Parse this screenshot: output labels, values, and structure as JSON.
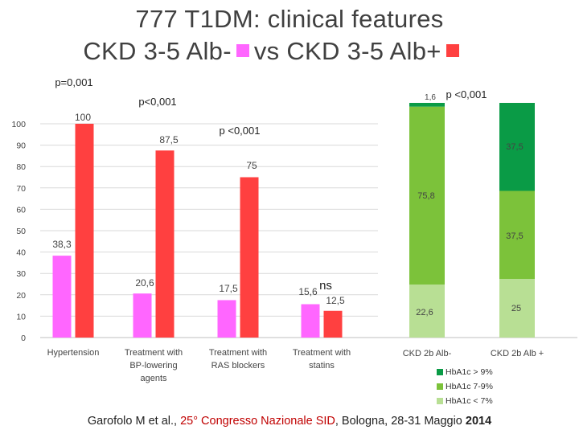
{
  "header": {
    "title_line1": "777 T1DM: clinical features",
    "title_line2_left": "CKD 3-5 Alb-",
    "title_line2_right": "vs CKD 3-5 Alb+",
    "legend_colors": {
      "alb_minus": "#ff66ff",
      "alb_plus": "#ff4040"
    }
  },
  "chart_data": [
    {
      "type": "bar",
      "categories": [
        "Hypertension",
        "Treatment with BP-lowering agents",
        "Treatment with RAS blockers",
        "Treatment with statins"
      ],
      "category_lines": [
        [
          "Hypertension"
        ],
        [
          "Treatment with",
          "BP-lowering",
          "agents"
        ],
        [
          "Treatment with",
          "RAS blockers"
        ],
        [
          "Treatment with",
          "statins"
        ]
      ],
      "series": [
        {
          "name": "CKD 3-5 Alb-",
          "color": "#ff66ff",
          "values": [
            38.3,
            20.6,
            17.5,
            15.6
          ],
          "labels": [
            "38,3",
            "20,6",
            "17,5",
            "15,6"
          ]
        },
        {
          "name": "CKD 3-5 Alb+",
          "color": "#ff4040",
          "values": [
            100,
            87.5,
            75,
            12.5
          ],
          "labels": [
            "100",
            "87,5",
            "75",
            "12,5"
          ]
        }
      ],
      "significance": [
        "p=0,001",
        "p<0,001",
        "p <0,001",
        "ns"
      ],
      "ylim": [
        0,
        100
      ],
      "yticks": [
        0,
        10,
        20,
        30,
        40,
        50,
        60,
        70,
        80,
        90,
        100
      ],
      "gridlines": true
    },
    {
      "type": "stacked-bar",
      "categories": [
        "CKD 2b Alb-",
        "CKD 2b Alb +"
      ],
      "series": [
        {
          "name": "HbA1c < 7%",
          "color": "#b8df94",
          "values": [
            22.6,
            25
          ],
          "labels": [
            "22,6",
            "25"
          ]
        },
        {
          "name": "HbA1c 7-9%",
          "color": "#7cc23a",
          "values": [
            75.8,
            37.5
          ],
          "labels": [
            "75,8",
            "37,5"
          ]
        },
        {
          "name": "HbA1c > 9%",
          "color": "#0a9b46",
          "values": [
            1.6,
            37.5
          ],
          "labels": [
            "1,6",
            "37,5"
          ]
        }
      ],
      "significance": "p <0,001",
      "legend_order": [
        "HbA1c > 9%",
        "HbA1c 7-9%",
        "HbA1c < 7%"
      ]
    }
  ],
  "citation": {
    "authors": "Garofolo M et al.,",
    "congress": "25° Congresso Nazionale SID",
    "place": ", Bologna, 28-31 Maggio",
    "year": "2014"
  }
}
